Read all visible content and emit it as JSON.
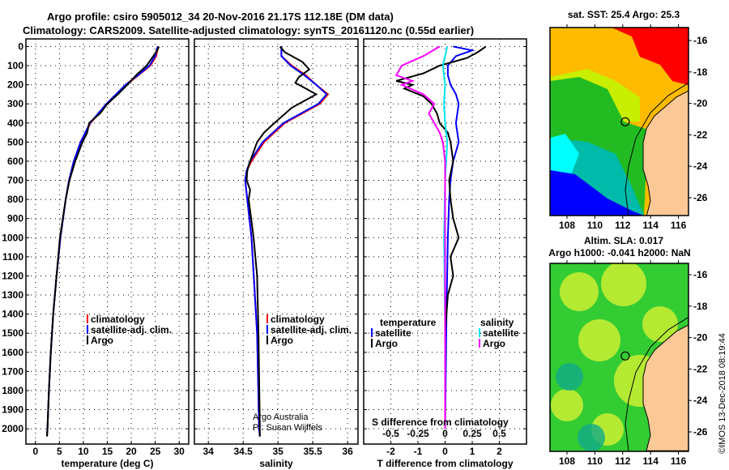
{
  "title": {
    "line1": "Argo profile: csiro 5905012_34 20-Nov-2016 21.17S 112.18E (DM data)",
    "line2": "Climatology: CARS2009. Satellite-adjusted climatology: synTS_20161120.nc (0.55d earlier)"
  },
  "copyright": "©IMOS 13-Dec-2018 08:19:44",
  "colors": {
    "climatology": "#ff0000",
    "satellite": "#0000ff",
    "argo": "#000000",
    "sat_s": "#00e5ee",
    "argo_s": "#ff00ff"
  },
  "chart_data": [
    {
      "type": "line",
      "id": "temperature",
      "xlabel": "temperature (deg C)",
      "xlim": [
        -2,
        32
      ],
      "ylim": [
        2080,
        -40
      ],
      "xticks": [
        0,
        5,
        10,
        15,
        20,
        25,
        30
      ],
      "yticks": [
        0,
        100,
        200,
        300,
        400,
        500,
        600,
        700,
        800,
        900,
        1000,
        1100,
        1200,
        1300,
        1400,
        1500,
        1600,
        1700,
        1800,
        1900,
        2000
      ],
      "legend": [
        "climatology",
        "satellite-adj. clim.",
        "Argo"
      ],
      "series": [
        {
          "name": "climatology",
          "color": "#ff0000",
          "depth": [
            0,
            50,
            100,
            150,
            200,
            300,
            400,
            500,
            600,
            700,
            800,
            1000,
            1200,
            1400,
            1600,
            1800,
            2000,
            2040
          ],
          "values": [
            25.6,
            25.2,
            24.0,
            21.5,
            19.0,
            15.0,
            11.5,
            9.5,
            8.0,
            7.0,
            6.3,
            5.2,
            4.4,
            3.7,
            3.2,
            2.8,
            2.5,
            2.4
          ]
        },
        {
          "name": "satellite-adj. clim.",
          "color": "#0000ff",
          "depth": [
            0,
            50,
            100,
            150,
            200,
            300,
            400,
            500,
            600,
            700,
            800,
            1000,
            1200,
            1400,
            1600,
            1800,
            2000,
            2040
          ],
          "values": [
            25.5,
            25.0,
            23.8,
            21.4,
            18.8,
            14.8,
            11.4,
            9.4,
            8.0,
            7.0,
            6.3,
            5.2,
            4.4,
            3.7,
            3.2,
            2.8,
            2.5,
            2.4
          ]
        },
        {
          "name": "Argo",
          "color": "#000000",
          "depth": [
            0,
            20,
            50,
            100,
            150,
            200,
            250,
            300,
            350,
            400,
            450,
            500,
            600,
            700,
            800,
            1000,
            1200,
            1400,
            1600,
            1800,
            2000,
            2040
          ],
          "values": [
            25.8,
            25.4,
            24.6,
            23.2,
            21.0,
            19.2,
            17.2,
            15.0,
            13.5,
            11.2,
            10.8,
            9.8,
            8.3,
            7.1,
            6.3,
            5.1,
            4.4,
            3.7,
            3.2,
            2.8,
            2.5,
            2.4
          ]
        }
      ]
    },
    {
      "type": "line",
      "id": "salinity",
      "xlabel": "salinity",
      "xlim": [
        33.8,
        36.15
      ],
      "ylim": [
        2080,
        -40
      ],
      "xticks": [
        34,
        34.5,
        35,
        35.5,
        36
      ],
      "legend": [
        "climatology",
        "satellite-adj. clim.",
        "Argo"
      ],
      "credit": [
        "Argo Australia",
        "PI: Susan Wijffels"
      ],
      "series": [
        {
          "name": "climatology",
          "color": "#ff0000",
          "depth": [
            0,
            50,
            100,
            150,
            200,
            250,
            300,
            350,
            400,
            500,
            600,
            650,
            700,
            800,
            1000,
            1500,
            2000,
            2040
          ],
          "values": [
            35.05,
            35.05,
            35.2,
            35.4,
            35.55,
            35.72,
            35.6,
            35.35,
            35.1,
            34.8,
            34.62,
            34.55,
            34.53,
            34.56,
            34.62,
            34.7,
            34.73,
            34.74
          ]
        },
        {
          "name": "satellite-adj. clim.",
          "color": "#0000ff",
          "depth": [
            0,
            50,
            100,
            150,
            200,
            250,
            300,
            350,
            400,
            500,
            600,
            650,
            700,
            800,
            1000,
            1500,
            2000,
            2040
          ],
          "values": [
            35.05,
            35.05,
            35.18,
            35.38,
            35.55,
            35.7,
            35.58,
            35.33,
            35.08,
            34.78,
            34.6,
            34.55,
            34.53,
            34.56,
            34.62,
            34.7,
            34.73,
            34.74
          ]
        },
        {
          "name": "Argo",
          "color": "#000000",
          "depth": [
            0,
            30,
            80,
            120,
            160,
            190,
            220,
            250,
            280,
            320,
            400,
            450,
            500,
            600,
            650,
            700,
            750,
            800,
            1000,
            1200,
            1500,
            2000,
            2040
          ],
          "values": [
            35.03,
            35.1,
            35.35,
            35.45,
            35.3,
            35.25,
            35.4,
            35.55,
            35.4,
            35.2,
            34.95,
            34.8,
            34.7,
            34.6,
            34.56,
            34.55,
            34.6,
            34.58,
            34.65,
            34.7,
            34.72,
            34.74,
            34.74
          ]
        }
      ]
    },
    {
      "type": "line",
      "id": "difference",
      "xlabel": "T difference from climatology",
      "x2label": "S difference from climatology",
      "xlim": [
        -3,
        3
      ],
      "ylim": [
        2080,
        -40
      ],
      "xticks": [
        -2,
        -1,
        0,
        1,
        2
      ],
      "x2ticks": [
        -0.5,
        -0.25,
        0,
        0.25,
        0.5
      ],
      "legend_t": {
        "title": "temperature",
        "items": [
          "satellite",
          "Argo"
        ]
      },
      "legend_s": {
        "title": "salinity",
        "items": [
          "satellite",
          "Argo"
        ]
      },
      "series": [
        {
          "name": "temperature satellite",
          "color": "#0000ff",
          "axis": "T",
          "depth": [
            0,
            20,
            50,
            100,
            150,
            200,
            250,
            300,
            400,
            500,
            600,
            700,
            800,
            1000,
            1400,
            2000
          ],
          "values": [
            0.3,
            1.0,
            0.4,
            0.1,
            0.1,
            0.2,
            0.4,
            0.5,
            0.4,
            0.5,
            0.3,
            0.2,
            0.15,
            0.1,
            0.05,
            0.0
          ]
        },
        {
          "name": "temperature Argo",
          "color": "#000000",
          "axis": "T",
          "depth": [
            0,
            30,
            60,
            100,
            140,
            180,
            200,
            220,
            260,
            300,
            350,
            400,
            450,
            500,
            600,
            700,
            800,
            900,
            1000,
            1100,
            1200,
            1300,
            1400,
            1500,
            1700,
            1900,
            2000
          ],
          "values": [
            1.5,
            1.2,
            0.8,
            -0.2,
            -0.8,
            -1.8,
            -1.2,
            -1.5,
            -0.8,
            -0.5,
            -0.3,
            -0.2,
            0.1,
            0.2,
            0.3,
            0.15,
            0.2,
            0.3,
            0.5,
            0.2,
            0.3,
            0.1,
            0.05,
            0.0,
            0.0,
            0.0,
            0.0
          ]
        },
        {
          "name": "salinity satellite",
          "color": "#00e5ee",
          "axis": "S",
          "depth": [
            0,
            50,
            100,
            200,
            300,
            400,
            500,
            700,
            1000,
            1500,
            2000
          ],
          "values": [
            0.02,
            0.0,
            -0.02,
            0.0,
            -0.01,
            0.0,
            0.02,
            0.0,
            -0.01,
            0.0,
            0.0
          ]
        },
        {
          "name": "salinity Argo",
          "color": "#ff00ff",
          "axis": "S",
          "depth": [
            0,
            50,
            100,
            150,
            180,
            200,
            250,
            300,
            350,
            400,
            450,
            500,
            600,
            700,
            800,
            1000,
            1500,
            2000
          ],
          "values": [
            -0.05,
            -0.2,
            -0.4,
            -0.45,
            -0.3,
            -0.4,
            -0.2,
            -0.1,
            -0.15,
            -0.1,
            -0.05,
            -0.02,
            0.0,
            0.0,
            0.0,
            0.0,
            0.0,
            0.0
          ]
        }
      ]
    }
  ],
  "maps": [
    {
      "title": "sat. SST: 25.4 Argo: 25.3",
      "lon_ticks": [
        "108",
        "110",
        "112",
        "114",
        "116"
      ],
      "lat_ticks": [
        "-16",
        "-18",
        "-20",
        "-22",
        "-24",
        "-26"
      ]
    },
    {
      "title1": "Altim. SLA: 0.017",
      "title2": "Argo h1000: -0.041 h2000: NaN",
      "lon_ticks": [
        "108",
        "110",
        "112",
        "114",
        "116"
      ],
      "lat_ticks": [
        "-16",
        "-18",
        "-20",
        "-22",
        "-24",
        "-26"
      ]
    }
  ]
}
